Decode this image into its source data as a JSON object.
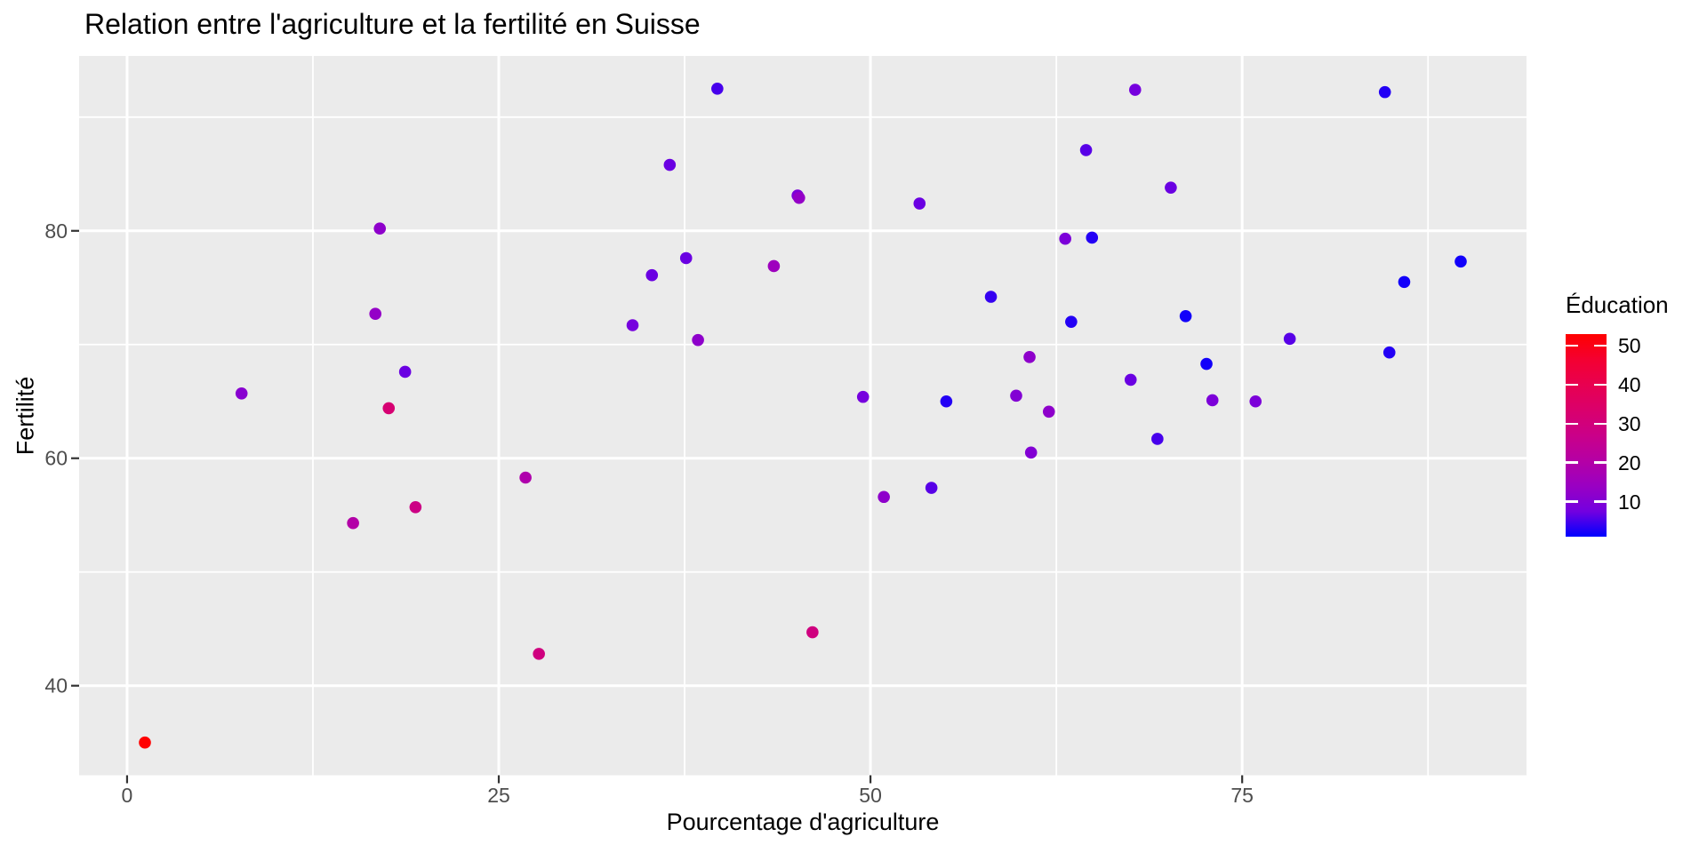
{
  "chart_data": {
    "type": "scatter",
    "title": "Relation entre l'agriculture et la fertilité en Suisse",
    "xlabel": "Pourcentage d'agriculture",
    "ylabel": "Fertilité",
    "x_ticks": [
      0,
      25,
      50,
      75
    ],
    "y_ticks": [
      40,
      60,
      80
    ],
    "x_minor_ticks": [
      12.5,
      37.5,
      62.5,
      87.5
    ],
    "y_minor_ticks": [
      50,
      70,
      90
    ],
    "xlim": [
      -3.225,
      94.125
    ],
    "ylim": [
      32.125,
      95.375
    ],
    "grid": "on",
    "legend": {
      "title": "Éducation",
      "position": "right",
      "ticks": [
        50,
        40,
        30,
        20,
        10
      ],
      "domain": [
        1,
        53
      ]
    },
    "colors": {
      "panel_bg": "#EBEBEB",
      "grid": "#FFFFFF",
      "tick_mark": "#333333",
      "tick_label": "#4D4D4D",
      "text": "#000000",
      "gradient_low": "#0000FF",
      "gradient_high": "#FF0000",
      "gradient_stops": [
        "#0000FF",
        "#7300E0",
        "#9A00C2",
        "#B500A5",
        "#CA0088",
        "#DA006C",
        "#E80050",
        "#F40031",
        "#FF0000"
      ]
    },
    "points": [
      {
        "agriculture": 17.0,
        "fertility": 80.2,
        "education": 12
      },
      {
        "agriculture": 45.1,
        "fertility": 83.1,
        "education": 9
      },
      {
        "agriculture": 39.7,
        "fertility": 92.5,
        "education": 5
      },
      {
        "agriculture": 36.5,
        "fertility": 85.8,
        "education": 7
      },
      {
        "agriculture": 43.5,
        "fertility": 76.9,
        "education": 15
      },
      {
        "agriculture": 35.3,
        "fertility": 76.1,
        "education": 7
      },
      {
        "agriculture": 70.2,
        "fertility": 83.8,
        "education": 7
      },
      {
        "agriculture": 67.8,
        "fertility": 92.4,
        "education": 8
      },
      {
        "agriculture": 53.3,
        "fertility": 82.4,
        "education": 7
      },
      {
        "agriculture": 45.2,
        "fertility": 82.9,
        "education": 13
      },
      {
        "agriculture": 64.5,
        "fertility": 87.1,
        "education": 6
      },
      {
        "agriculture": 62.0,
        "fertility": 64.1,
        "education": 12
      },
      {
        "agriculture": 67.5,
        "fertility": 66.9,
        "education": 7
      },
      {
        "agriculture": 60.7,
        "fertility": 68.9,
        "education": 12
      },
      {
        "agriculture": 69.3,
        "fertility": 61.7,
        "education": 5
      },
      {
        "agriculture": 72.6,
        "fertility": 68.3,
        "education": 2
      },
      {
        "agriculture": 34.0,
        "fertility": 71.7,
        "education": 8
      },
      {
        "agriculture": 19.4,
        "fertility": 55.7,
        "education": 28
      },
      {
        "agriculture": 15.2,
        "fertility": 54.3,
        "education": 20
      },
      {
        "agriculture": 73.0,
        "fertility": 65.1,
        "education": 9
      },
      {
        "agriculture": 59.8,
        "fertility": 65.5,
        "education": 10
      },
      {
        "agriculture": 55.1,
        "fertility": 65.0,
        "education": 3
      },
      {
        "agriculture": 50.9,
        "fertility": 56.6,
        "education": 12
      },
      {
        "agriculture": 54.1,
        "fertility": 57.4,
        "education": 6
      },
      {
        "agriculture": 71.2,
        "fertility": 72.5,
        "education": 2
      },
      {
        "agriculture": 58.1,
        "fertility": 74.2,
        "education": 4
      },
      {
        "agriculture": 63.5,
        "fertility": 72.0,
        "education": 3
      },
      {
        "agriculture": 60.8,
        "fertility": 60.5,
        "education": 10
      },
      {
        "agriculture": 26.8,
        "fertility": 58.3,
        "education": 19
      },
      {
        "agriculture": 49.5,
        "fertility": 65.4,
        "education": 8
      },
      {
        "agriculture": 85.9,
        "fertility": 75.5,
        "education": 2
      },
      {
        "agriculture": 84.9,
        "fertility": 69.3,
        "education": 3
      },
      {
        "agriculture": 89.7,
        "fertility": 77.3,
        "education": 2
      },
      {
        "agriculture": 78.2,
        "fertility": 70.5,
        "education": 6
      },
      {
        "agriculture": 64.9,
        "fertility": 79.4,
        "education": 3
      },
      {
        "agriculture": 75.9,
        "fertility": 65.0,
        "education": 9
      },
      {
        "agriculture": 84.6,
        "fertility": 92.2,
        "education": 3
      },
      {
        "agriculture": 63.1,
        "fertility": 79.3,
        "education": 9
      },
      {
        "agriculture": 38.4,
        "fertility": 70.4,
        "education": 12
      },
      {
        "agriculture": 7.7,
        "fertility": 65.7,
        "education": 11
      },
      {
        "agriculture": 16.7,
        "fertility": 72.7,
        "education": 13
      },
      {
        "agriculture": 17.6,
        "fertility": 64.4,
        "education": 32
      },
      {
        "agriculture": 37.6,
        "fertility": 77.6,
        "education": 7
      },
      {
        "agriculture": 18.7,
        "fertility": 67.6,
        "education": 7
      },
      {
        "agriculture": 1.2,
        "fertility": 35.0,
        "education": 53
      },
      {
        "agriculture": 46.1,
        "fertility": 44.7,
        "education": 29
      },
      {
        "agriculture": 27.7,
        "fertility": 42.8,
        "education": 29
      }
    ]
  }
}
